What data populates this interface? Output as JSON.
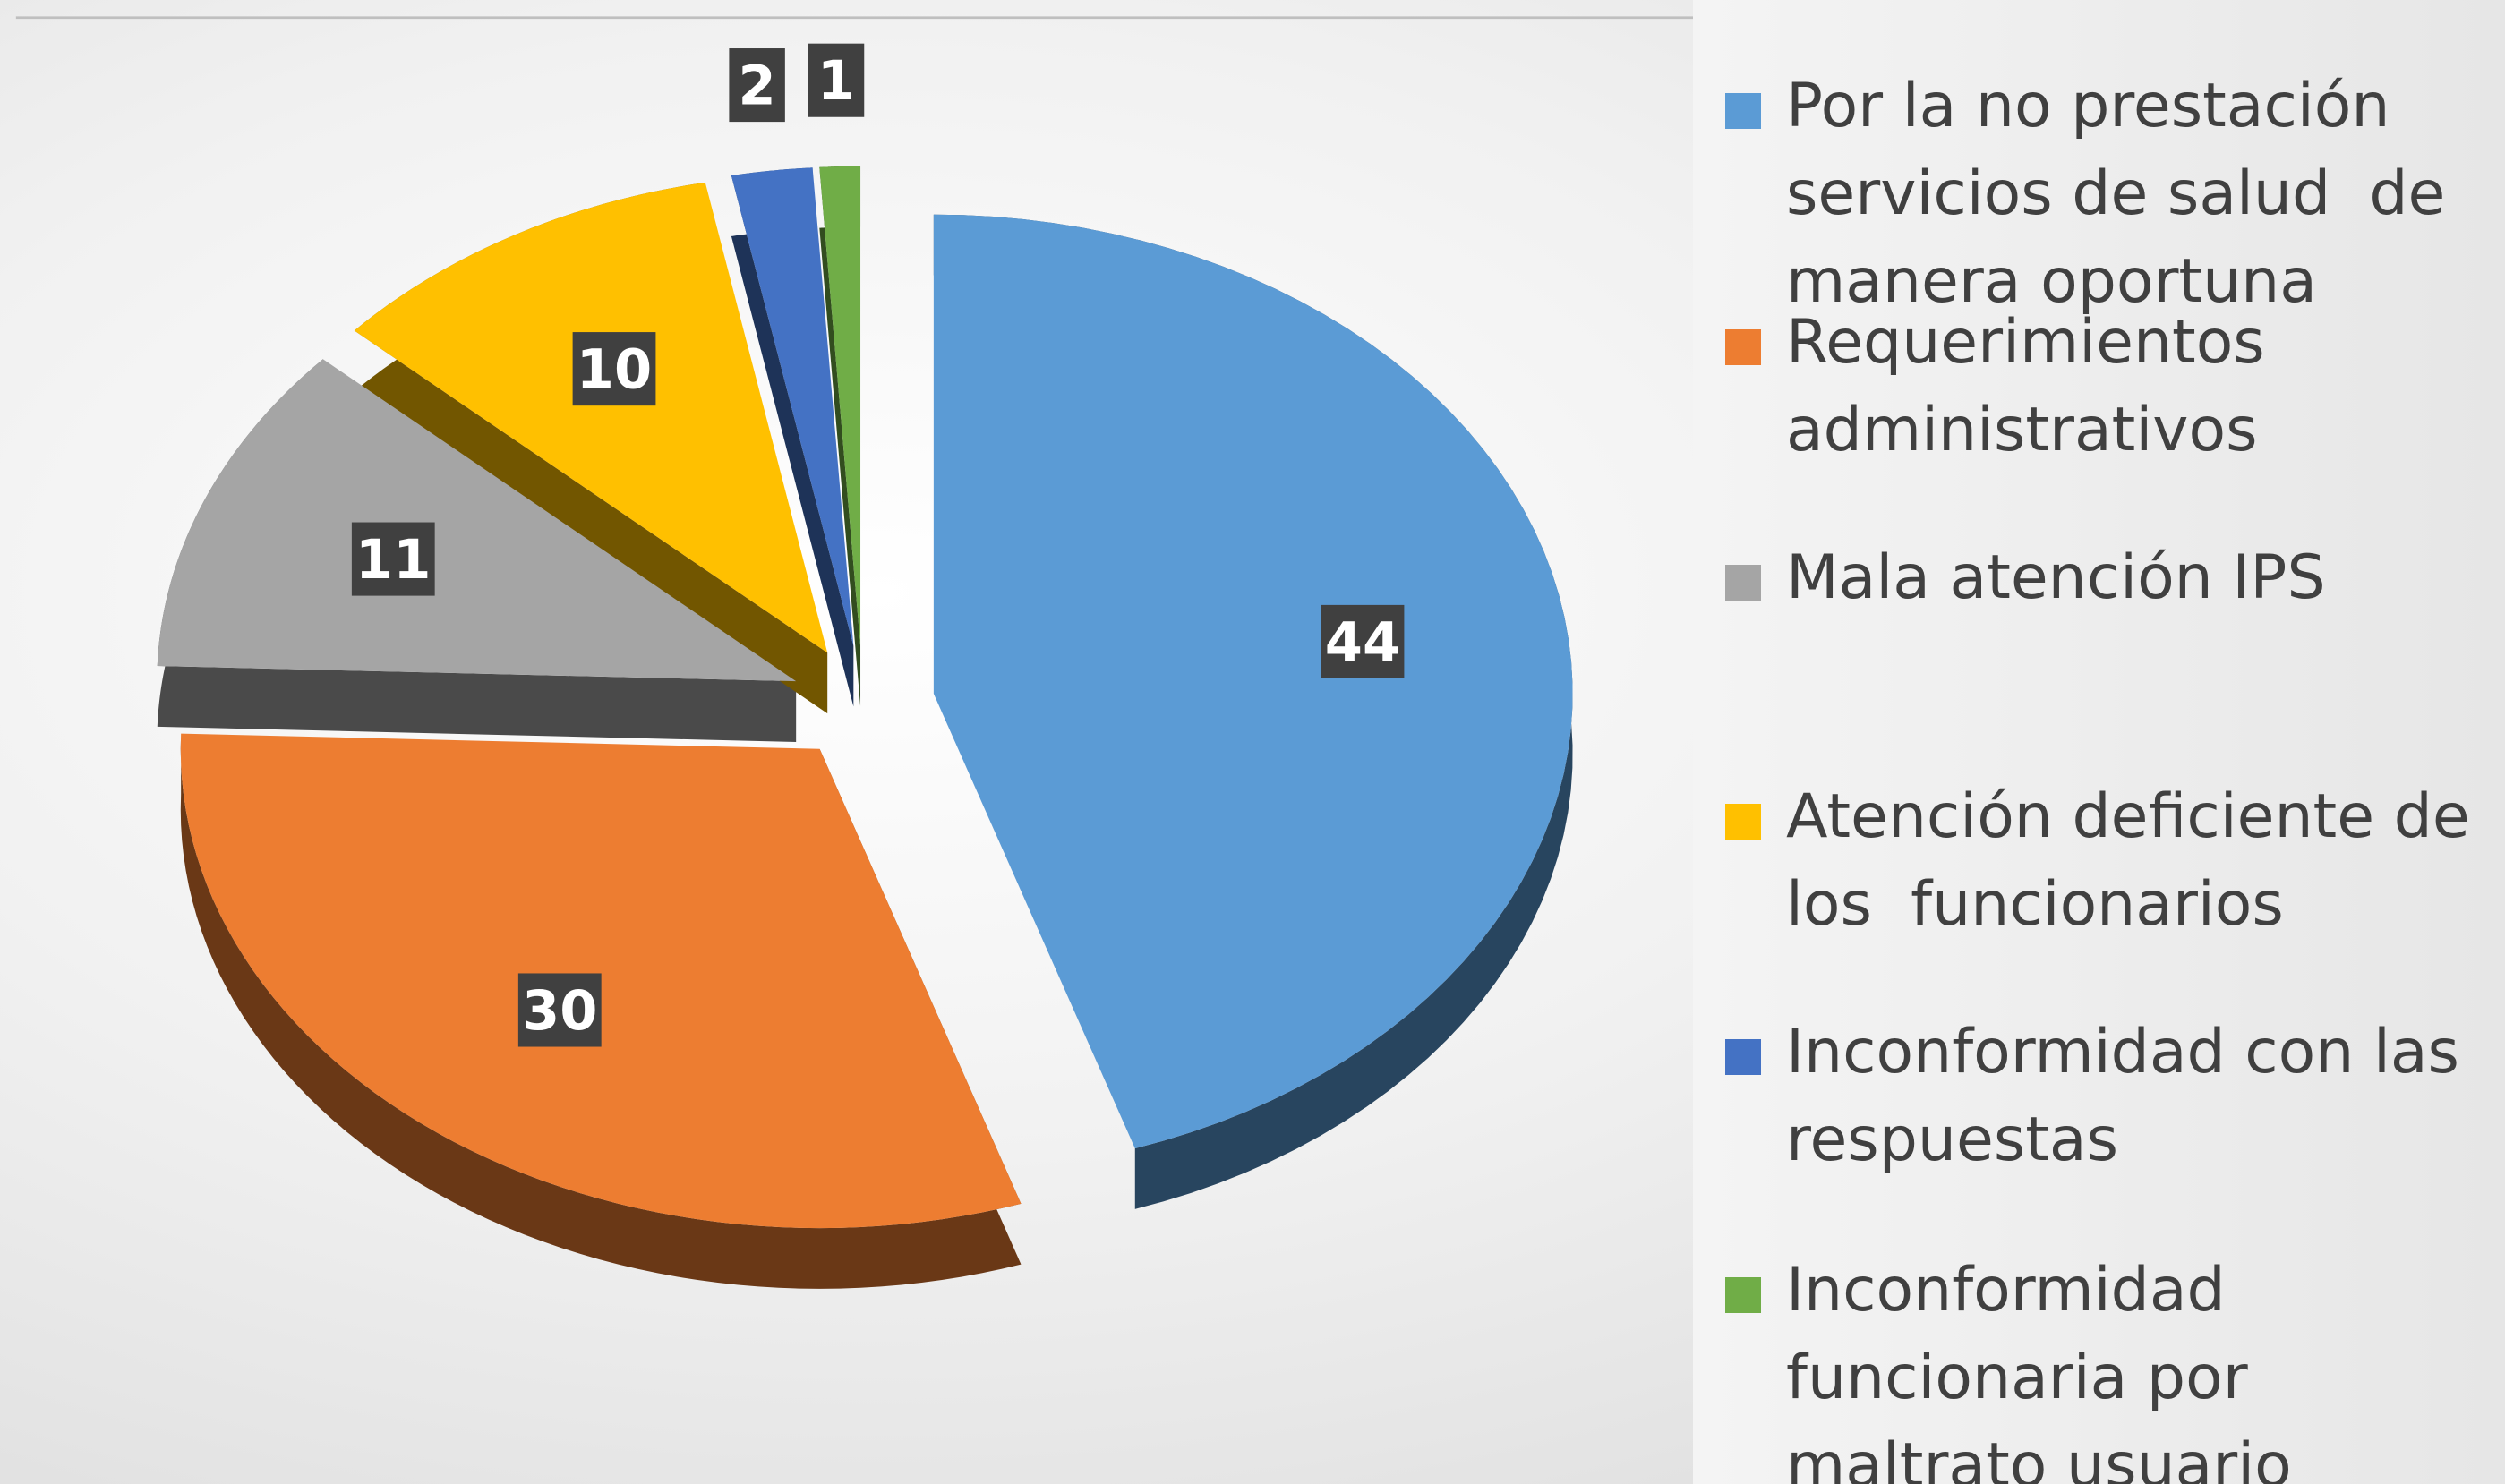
{
  "chart_data": {
    "type": "pie",
    "categories": [
      "Por la no prestación servicios de salud  de manera oportuna",
      "Requerimientos administrativos",
      "Mala atención IPS",
      "Atención deficiente de los  funcionarios",
      "Inconformidad con las respuestas",
      "Inconformidad funcionaria por maltrato usuario"
    ],
    "values": [
      44,
      30,
      11,
      10,
      2,
      1
    ],
    "colors": [
      "#5b9bd5",
      "#ed7d31",
      "#a5a5a5",
      "#ffc000",
      "#4472c4",
      "#70ad47"
    ],
    "legend": "right"
  }
}
